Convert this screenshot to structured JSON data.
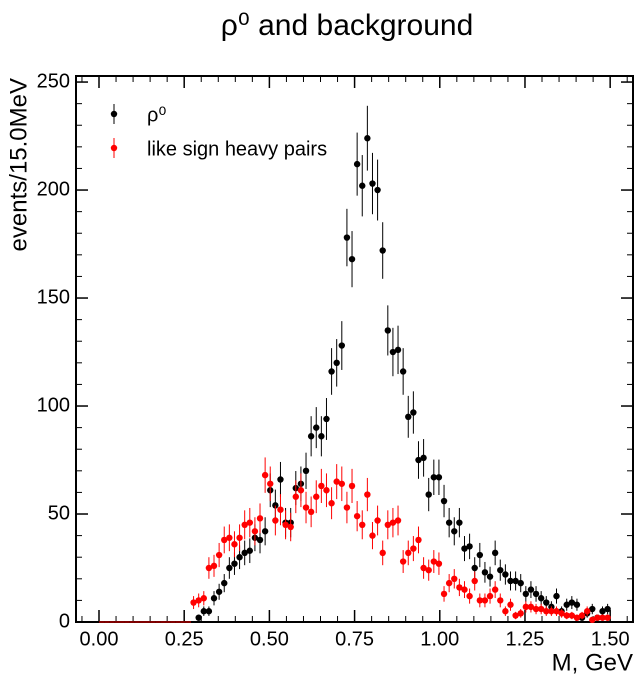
{
  "chart_data": {
    "type": "errorbar",
    "title": "ρ⁰ and background",
    "x_label": "M, GeV",
    "y_label": "events/15.0MeV",
    "xlim": [
      -0.0675,
      1.567
    ],
    "ylim": [
      0,
      252.8
    ],
    "xticks": [
      {
        "value": 0,
        "label": "0.00"
      },
      {
        "value": 0.25,
        "label": "0.25"
      },
      {
        "value": 0.5,
        "label": "0.50"
      },
      {
        "value": 0.75,
        "label": "0.75"
      },
      {
        "value": 1,
        "label": "1.00"
      },
      {
        "value": 1.25,
        "label": "1.25"
      },
      {
        "value": 1.5,
        "label": "1.50"
      }
    ],
    "yticks": [
      0,
      50,
      100,
      150,
      200,
      250
    ],
    "xminorticks": [
      -0.05,
      0.05,
      0.1,
      0.15,
      0.2,
      0.3,
      0.35,
      0.4,
      0.45,
      0.55,
      0.6,
      0.65,
      0.7,
      0.8,
      0.85,
      0.9,
      0.95,
      1.05,
      1.1,
      1.15,
      1.2,
      1.3,
      1.35,
      1.4,
      1.45,
      1.55
    ],
    "yminorticks": [
      10,
      20,
      30,
      40,
      60,
      70,
      80,
      90,
      110,
      120,
      130,
      140,
      160,
      170,
      180,
      190,
      210,
      220,
      230,
      240
    ],
    "legend_loc": "upper left",
    "x": [
      0.0075,
      0.0225,
      0.0375,
      0.0525,
      0.0675,
      0.0825,
      0.0975,
      0.1125,
      0.1275,
      0.1425,
      0.1575,
      0.1725,
      0.1875,
      0.2025,
      0.2175,
      0.2325,
      0.2475,
      0.2625,
      0.2775,
      0.2925,
      0.3075,
      0.3225,
      0.3375,
      0.3525,
      0.3675,
      0.3825,
      0.3975,
      0.4125,
      0.4275,
      0.4425,
      0.4575,
      0.4725,
      0.4875,
      0.5025,
      0.5175,
      0.5325,
      0.5475,
      0.5625,
      0.5775,
      0.5925,
      0.6075,
      0.6225,
      0.6375,
      0.6525,
      0.6675,
      0.6825,
      0.6975,
      0.7125,
      0.7275,
      0.7425,
      0.7575,
      0.7725,
      0.7875,
      0.8025,
      0.8175,
      0.8325,
      0.8475,
      0.8625,
      0.8775,
      0.8925,
      0.9075,
      0.9225,
      0.9375,
      0.9525,
      0.9675,
      0.9825,
      0.9975,
      1.0125,
      1.0275,
      1.0425,
      1.0575,
      1.0725,
      1.0875,
      1.1025,
      1.1175,
      1.1325,
      1.1475,
      1.1625,
      1.1775,
      1.1925,
      1.2075,
      1.2225,
      1.2375,
      1.2525,
      1.2675,
      1.2825,
      1.2975,
      1.3125,
      1.3275,
      1.3425,
      1.3575,
      1.3725,
      1.3875,
      1.4025,
      1.4175,
      1.4325,
      1.4475,
      1.4625,
      1.4775,
      1.4925
    ],
    "series": [
      {
        "name": "ρ⁰",
        "color": "#000000",
        "values": [
          0,
          0,
          0,
          0,
          0,
          0,
          0,
          0,
          0,
          0,
          0,
          0,
          0,
          0,
          0,
          0,
          0,
          0,
          0,
          2,
          5,
          5,
          11,
          14,
          18,
          25,
          27,
          30,
          32,
          33,
          39,
          38,
          42,
          61,
          54,
          66,
          46,
          46,
          62,
          64,
          70,
          86,
          90,
          86,
          94,
          116,
          120,
          128,
          178,
          168,
          212,
          202,
          224,
          203,
          200,
          172,
          135,
          125,
          126,
          116,
          95,
          97,
          75,
          76,
          59,
          67,
          67,
          56,
          46,
          42,
          46,
          34,
          35,
          25,
          31,
          23,
          21,
          32,
          24,
          22,
          19,
          19,
          18,
          13,
          15,
          13,
          11,
          9,
          7,
          12,
          5,
          8,
          9,
          8,
          2,
          4,
          6,
          2,
          5,
          6
        ],
        "errors": [
          0,
          0,
          0,
          0,
          0,
          0,
          0,
          0,
          0,
          0,
          0,
          0,
          0,
          0,
          0,
          0,
          0,
          0,
          0,
          1.4,
          2.2,
          2.2,
          3.3,
          3.7,
          4.2,
          5,
          5.2,
          5.5,
          5.7,
          5.7,
          6.2,
          6.2,
          6.5,
          7.8,
          7.3,
          8.1,
          6.8,
          6.8,
          7.9,
          8,
          8.4,
          9.3,
          9.5,
          9.3,
          9.7,
          10.8,
          11,
          11.3,
          13.3,
          13,
          14.6,
          14.2,
          15,
          14.2,
          14.1,
          13.1,
          11.6,
          11.2,
          11.2,
          10.8,
          9.7,
          9.8,
          8.7,
          8.7,
          7.7,
          8.2,
          8.2,
          7.5,
          6.8,
          6.5,
          6.8,
          5.8,
          5.9,
          5,
          5.6,
          4.8,
          4.6,
          5.7,
          4.9,
          4.7,
          4.4,
          4.4,
          4.2,
          3.6,
          3.9,
          3.6,
          3.3,
          3,
          2.6,
          3.5,
          2.2,
          2.8,
          3,
          2.8,
          1.4,
          2,
          2.4,
          1.4,
          2.2,
          2.4
        ]
      },
      {
        "name": "like sign heavy pairs",
        "color": "#ff0000",
        "values": [
          0,
          0,
          0,
          0,
          0,
          0,
          0,
          0,
          0,
          0,
          0,
          0,
          0,
          0,
          0,
          0,
          0,
          0,
          9,
          10,
          11,
          25,
          26,
          31,
          38,
          39,
          36,
          39,
          45,
          46,
          42,
          48,
          68,
          64,
          47,
          52,
          45,
          44,
          58,
          61,
          53,
          51,
          58,
          63,
          61,
          55,
          65,
          64,
          53,
          63,
          49,
          45,
          59,
          40,
          47,
          32,
          45,
          46,
          47,
          28,
          32,
          34,
          38,
          25,
          24,
          28,
          27,
          13,
          18,
          20,
          16,
          15,
          12,
          19,
          10,
          10,
          12,
          15,
          10,
          5,
          8,
          3,
          4,
          7,
          7,
          6,
          6,
          5,
          5,
          5,
          4,
          3,
          3,
          2,
          3,
          5,
          1,
          2,
          2,
          2
        ],
        "errors": [
          0,
          0,
          0,
          0,
          0,
          0,
          0,
          0,
          0,
          0,
          0,
          0,
          0,
          0,
          0,
          0,
          0,
          0,
          3,
          3.2,
          3.3,
          5,
          5.1,
          5.6,
          6.2,
          6.2,
          6,
          6.2,
          6.7,
          6.8,
          6.5,
          6.9,
          8.2,
          8,
          6.9,
          7.2,
          6.7,
          6.6,
          7.6,
          7.8,
          7.3,
          7.1,
          7.6,
          7.9,
          7.8,
          7.4,
          8.1,
          8,
          7.3,
          7.9,
          7,
          6.7,
          7.7,
          6.3,
          6.9,
          5.7,
          6.7,
          6.8,
          6.9,
          5.3,
          5.7,
          5.8,
          6.2,
          5,
          4.9,
          5.3,
          5.2,
          3.6,
          4.2,
          4.5,
          4,
          3.9,
          3.5,
          4.4,
          3.2,
          3.2,
          3.5,
          3.9,
          3.2,
          2.2,
          2.8,
          1.7,
          2,
          2.6,
          2.6,
          2.4,
          2.4,
          2.2,
          2.2,
          2.2,
          2,
          1.7,
          1.7,
          1.4,
          1.7,
          2.2,
          1,
          1.4,
          1.4,
          1.4
        ]
      }
    ]
  }
}
